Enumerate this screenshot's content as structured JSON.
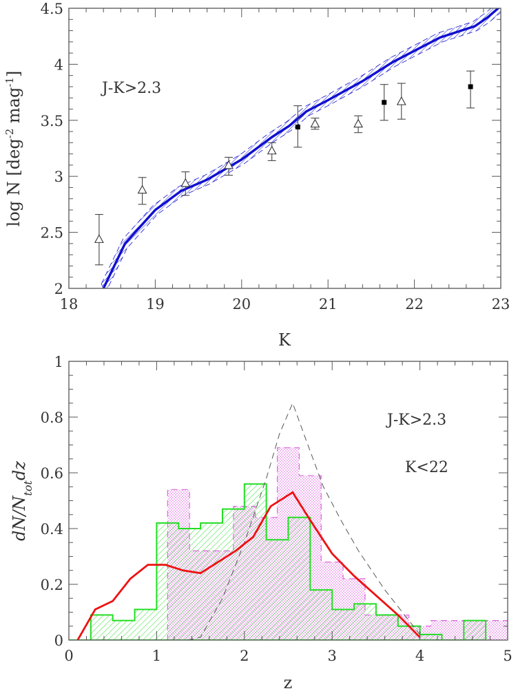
{
  "chart_data": [
    {
      "type": "line",
      "xlabel": "K",
      "ylabel": "log N [deg",
      "ylabel_sup1": "-2",
      "ylabel_mid": " mag",
      "ylabel_sup2": "-1",
      "ylabel_end": "]",
      "xlim": [
        18,
        23
      ],
      "ylim": [
        2,
        4.5
      ],
      "xticks": [
        "18",
        "19",
        "20",
        "21",
        "22",
        "23"
      ],
      "yticks": [
        "2",
        "2.5",
        "3",
        "3.5",
        "4",
        "4.5"
      ],
      "annotation": "J-K>2.3",
      "model_line": {
        "color": "#1010d0",
        "x": [
          18.4,
          18.65,
          19.0,
          19.3,
          19.6,
          20.0,
          20.35,
          20.55,
          20.75,
          21.0,
          21.4,
          21.75,
          22.0,
          22.3,
          22.7,
          22.85,
          23.0
        ],
        "y": [
          2.0,
          2.4,
          2.7,
          2.87,
          2.97,
          3.15,
          3.35,
          3.45,
          3.58,
          3.68,
          3.85,
          4.02,
          4.12,
          4.24,
          4.34,
          4.42,
          4.52
        ],
        "band_halfwidth": 0.04
      },
      "series": [
        {
          "marker": "triangle-open",
          "x": [
            18.35,
            18.85,
            19.35,
            19.85,
            20.35,
            20.85,
            21.35,
            21.85
          ],
          "y": [
            2.44,
            2.88,
            2.94,
            3.1,
            3.23,
            3.47,
            3.47,
            3.67
          ],
          "err_low": [
            2.21,
            2.75,
            2.83,
            3.01,
            3.14,
            3.42,
            3.39,
            3.51
          ],
          "err_high": [
            2.66,
            2.99,
            3.04,
            3.17,
            3.3,
            3.52,
            3.54,
            3.83
          ]
        },
        {
          "marker": "square-filled",
          "x": [
            20.65,
            21.65,
            22.65
          ],
          "y": [
            3.44,
            3.66,
            3.8
          ],
          "err_low": [
            3.26,
            3.5,
            3.61
          ],
          "err_high": [
            3.63,
            3.82,
            3.94
          ]
        }
      ]
    },
    {
      "type": "area",
      "xlabel": "z",
      "ylabel": "dN/N",
      "ylabel_sub": "tot",
      "ylabel_end": "dz",
      "xlim": [
        0,
        5
      ],
      "ylim": [
        0,
        1
      ],
      "xticks": [
        "0",
        "1",
        "2",
        "3",
        "4",
        "5"
      ],
      "yticks": [
        "0",
        "0.2",
        "0.4",
        "0.6",
        "0.8",
        "1"
      ],
      "annotations": [
        "J-K>2.3",
        "K<22"
      ],
      "green_histogram": {
        "color": "#22dd22",
        "edges": [
          0,
          0.25,
          0.5,
          0.75,
          1.0,
          1.25,
          1.5,
          1.75,
          2.0,
          2.25,
          2.5,
          2.75,
          3.0,
          3.25,
          3.5,
          3.75,
          4.0,
          4.25,
          4.5,
          4.75
        ],
        "values": [
          0,
          0.09,
          0.07,
          0.11,
          0.42,
          0.4,
          0.42,
          0.47,
          0.56,
          0.36,
          0.44,
          0.18,
          0.11,
          0.13,
          0.09,
          0.05,
          0.02,
          0,
          0.07
        ]
      },
      "magenta_histogram": {
        "color": "#dd66dd",
        "edges": [
          1.0,
          1.125,
          1.375,
          1.625,
          1.875,
          2.125,
          2.375,
          2.625,
          2.875,
          3.125,
          3.375,
          3.875,
          4.125,
          5.0
        ],
        "values": [
          0,
          0.54,
          0.32,
          0.32,
          0.48,
          0.44,
          0.69,
          0.59,
          0.28,
          0.22,
          0.09,
          0.05,
          0.07,
          0
        ]
      },
      "red_line": {
        "color": "#ee1111",
        "x": [
          0.1,
          0.3,
          0.5,
          0.7,
          0.9,
          1.1,
          1.3,
          1.5,
          1.7,
          1.9,
          2.1,
          2.3,
          2.55,
          2.75,
          3.0,
          3.25,
          3.5,
          3.75,
          4.0
        ],
        "y": [
          0,
          0.11,
          0.14,
          0.22,
          0.27,
          0.27,
          0.25,
          0.24,
          0.28,
          0.32,
          0.37,
          0.48,
          0.53,
          0.43,
          0.31,
          0.23,
          0.16,
          0.09,
          0.01
        ]
      },
      "dashed_line": {
        "color": "#555555",
        "x": [
          1.35,
          1.5,
          1.75,
          2.0,
          2.25,
          2.4,
          2.55,
          2.7,
          2.9,
          3.1,
          3.3,
          3.6,
          3.8,
          4.0
        ],
        "y": [
          0,
          0.01,
          0.15,
          0.35,
          0.58,
          0.74,
          0.85,
          0.72,
          0.55,
          0.43,
          0.32,
          0.18,
          0.1,
          0.02
        ]
      }
    }
  ]
}
